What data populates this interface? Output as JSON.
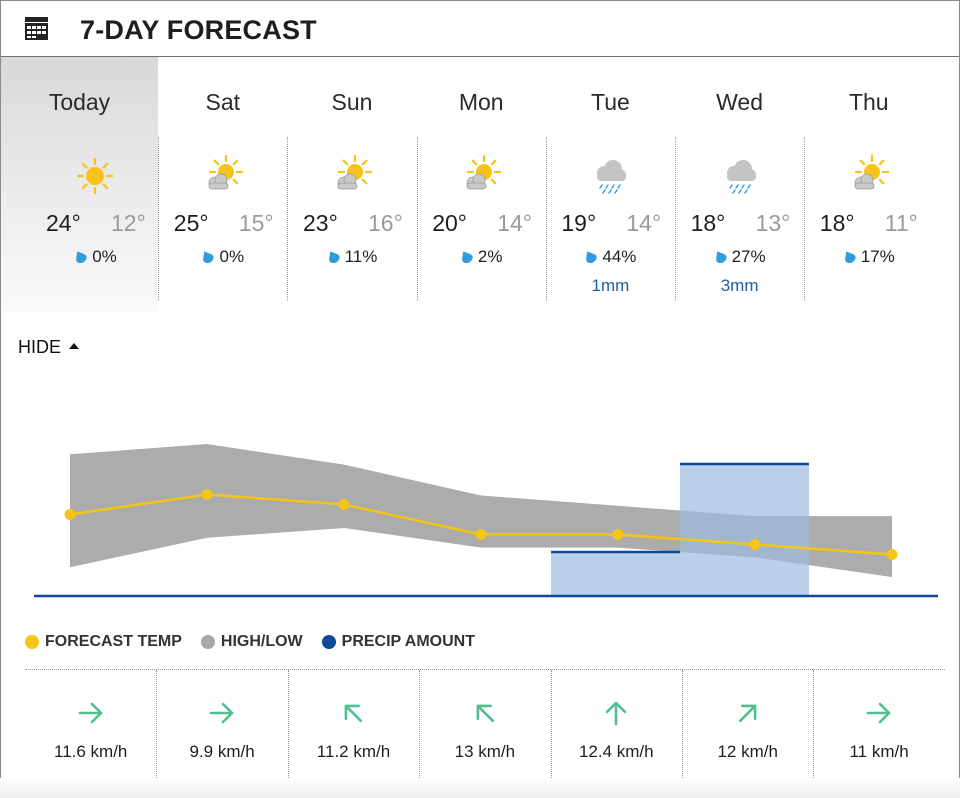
{
  "header": {
    "title": "7-DAY FORECAST",
    "icon": "calendar-icon"
  },
  "days": [
    {
      "name": "Today",
      "icon": "sun-icon",
      "high": "24°",
      "low": "12°",
      "rain_chance": "0%",
      "rain_amount": ""
    },
    {
      "name": "Sat",
      "icon": "partly-cloudy-icon",
      "high": "25°",
      "low": "15°",
      "rain_chance": "0%",
      "rain_amount": ""
    },
    {
      "name": "Sun",
      "icon": "partly-cloudy-icon",
      "high": "23°",
      "low": "16°",
      "rain_chance": "11%",
      "rain_amount": ""
    },
    {
      "name": "Mon",
      "icon": "partly-cloudy-icon",
      "high": "20°",
      "low": "14°",
      "rain_chance": "2%",
      "rain_amount": ""
    },
    {
      "name": "Tue",
      "icon": "rain-cloud-icon",
      "high": "19°",
      "low": "14°",
      "rain_chance": "44%",
      "rain_amount": "1mm"
    },
    {
      "name": "Wed",
      "icon": "rain-cloud-icon",
      "high": "18°",
      "low": "13°",
      "rain_chance": "27%",
      "rain_amount": "3mm"
    },
    {
      "name": "Thu",
      "icon": "partly-cloudy-icon",
      "high": "18°",
      "low": "11°",
      "rain_chance": "17%",
      "rain_amount": ""
    }
  ],
  "toggle": {
    "label": "HIDE"
  },
  "legend": {
    "forecast_temp": "FORECAST TEMP",
    "high_low": "HIGH/LOW",
    "precip_amount": "PRECIP AMOUNT"
  },
  "colors": {
    "forecast_temp": "#f5c518",
    "high_low": "#a8a8a8",
    "precip_amount": "#0d4a9c",
    "precip_fill": "#9dbcdf",
    "wind_arrow": "#4fbf8f",
    "rain_mm": "#1f5ea8",
    "drop": "#2d9de0",
    "sun": "#f7c21b"
  },
  "chart_data": {
    "type": "line",
    "categories": [
      "Today",
      "Sat",
      "Sun",
      "Mon",
      "Tue",
      "Wed",
      "Thu"
    ],
    "series": [
      {
        "name": "FORECAST TEMP",
        "values": [
          20,
          22,
          21,
          18,
          18,
          17,
          16
        ]
      },
      {
        "name": "HIGH/LOW",
        "high": [
          24,
          25,
          23,
          20,
          19,
          18,
          18
        ],
        "low": [
          12,
          15,
          16,
          14,
          14,
          13,
          11
        ]
      },
      {
        "name": "PRECIP AMOUNT",
        "values": [
          0,
          0,
          0,
          0,
          1,
          3,
          0
        ]
      }
    ]
  },
  "winds": [
    {
      "direction": "east",
      "icon": "arrow-right-icon",
      "speed": "11.6 km/h"
    },
    {
      "direction": "east",
      "icon": "arrow-right-icon",
      "speed": "9.9 km/h"
    },
    {
      "direction": "northwest",
      "icon": "arrow-up-left-icon",
      "speed": "11.2 km/h"
    },
    {
      "direction": "northwest",
      "icon": "arrow-up-left-icon",
      "speed": "13 km/h"
    },
    {
      "direction": "north",
      "icon": "arrow-up-icon",
      "speed": "12.4 km/h"
    },
    {
      "direction": "northeast",
      "icon": "arrow-up-right-icon",
      "speed": "12 km/h"
    },
    {
      "direction": "east",
      "icon": "arrow-right-icon",
      "speed": "11 km/h"
    }
  ]
}
